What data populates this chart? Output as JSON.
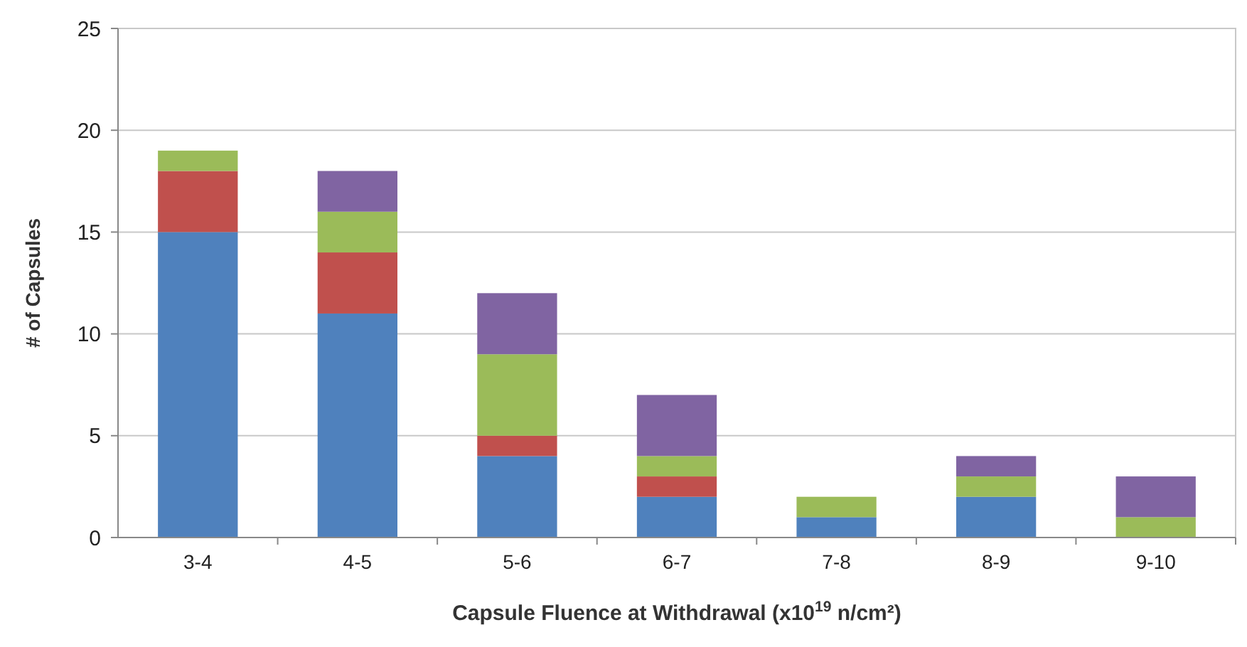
{
  "chart_data": {
    "type": "bar",
    "stacked": true,
    "xlabel": "Capsule Fluence at Withdrawal (x10$^{19}$ n/cm²)",
    "ylabel": "# of Capsules",
    "categories": [
      "3-4",
      "4-5",
      "5-6",
      "6-7",
      "7-8",
      "8-9",
      "9-10"
    ],
    "series": [
      {
        "color": "#4f81bd",
        "values": [
          15,
          11,
          4,
          2,
          1,
          2,
          0
        ]
      },
      {
        "color": "#c0504d",
        "values": [
          3,
          3,
          1,
          1,
          0,
          0,
          0
        ]
      },
      {
        "color": "#9bbb59",
        "values": [
          1,
          2,
          4,
          1,
          1,
          1,
          1
        ]
      },
      {
        "color": "#8064a2",
        "values": [
          0,
          2,
          3,
          3,
          0,
          1,
          2
        ]
      }
    ],
    "ylim": [
      0,
      25
    ],
    "yticks": [
      0,
      5,
      10,
      15,
      20,
      25
    ],
    "grid": "y"
  }
}
